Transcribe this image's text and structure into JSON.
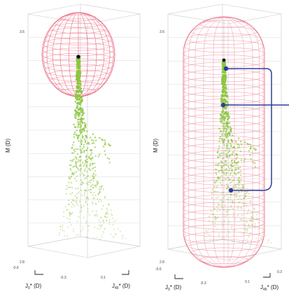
{
  "chart_data": [
    {
      "type": "scatter",
      "envelope": "sphere",
      "ylabel": "M (D)",
      "xlabel": "J0* (D)",
      "zlabel": "J45* (D)",
      "yticks": [
        "3.6",
        "2.8"
      ],
      "xticks": [
        "-0.6",
        "-0.3"
      ],
      "zticks": [
        "0.1"
      ],
      "colors": {
        "points": "#8cc63f",
        "envelope": "#e8607a",
        "apex": "#111111"
      }
    },
    {
      "type": "scatter",
      "envelope": "capsule",
      "ylabel": "M (D)",
      "xlabel": "J0* (D)",
      "zlabel": "J45* (D)",
      "yticks": [
        "3.6",
        "2.8"
      ],
      "xticks": [
        "-0.6",
        "-0.3"
      ],
      "zticks": [
        "0.1",
        "0.3"
      ],
      "colors": {
        "points": "#8cc63f",
        "envelope": "#e8607a",
        "apex": "#111111",
        "bracket": "#2c3e9e"
      }
    }
  ],
  "labels": {
    "p1": {
      "ylabel": "M (D)",
      "xlabel_main": "J",
      "xlabel_sub": "0",
      "xlabel_rest": "* (D)",
      "zlabel_main": "J",
      "zlabel_sub": "45",
      "zlabel_rest": "* (D)",
      "ytop": "3.6",
      "ybot": "2.8",
      "x1": "-0.6",
      "x2": "-0.3",
      "z1": "0.1"
    },
    "p2": {
      "ylabel": "M (D)",
      "xlabel_main": "J",
      "xlabel_sub": "0",
      "xlabel_rest": "* (D)",
      "zlabel_main": "J",
      "zlabel_sub": "45",
      "zlabel_rest": "* (D)",
      "ytop": "3.6",
      "ybot": "2.8",
      "x1": "-0.6",
      "x2": "-0.3",
      "z1": "0.1",
      "z2": "0.3"
    }
  }
}
